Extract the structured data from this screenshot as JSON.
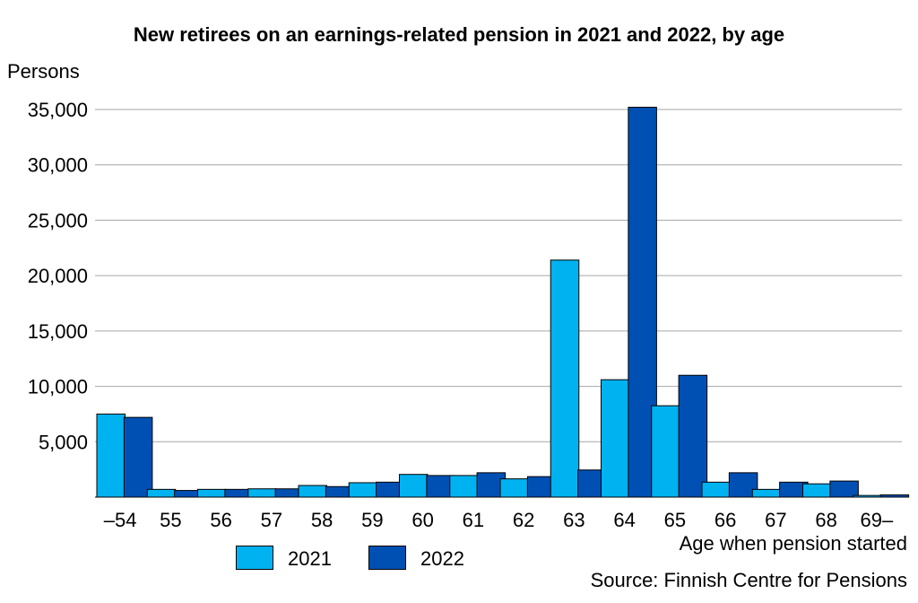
{
  "chart_data": {
    "type": "bar",
    "title": "New retirees on an earnings-related pension in 2021 and 2022, by age",
    "ylabel": "Persons",
    "xlabel": "Age when pension started",
    "source": "Source: Finnish Centre for Pensions",
    "categories": [
      "–54",
      "55",
      "56",
      "57",
      "58",
      "59",
      "60",
      "61",
      "62",
      "63",
      "64",
      "65",
      "66",
      "67",
      "68",
      "69–"
    ],
    "series": [
      {
        "name": "2021",
        "color": "#00b2f0",
        "values": [
          7500,
          700,
          700,
          750,
          1050,
          1300,
          2050,
          1950,
          1650,
          21400,
          10600,
          8250,
          1350,
          700,
          1200,
          150
        ]
      },
      {
        "name": "2022",
        "color": "#0050b4",
        "values": [
          7200,
          600,
          700,
          750,
          950,
          1350,
          1950,
          2200,
          1850,
          2450,
          35200,
          11000,
          2200,
          1350,
          1450,
          200
        ]
      }
    ],
    "ylim": [
      0,
      35000
    ],
    "yticks": [
      "5,000",
      "10,000",
      "15,000",
      "20,000",
      "25,000",
      "30,000",
      "35,000"
    ],
    "ytick_values": [
      5000,
      10000,
      15000,
      20000,
      25000,
      30000,
      35000
    ],
    "grid": true,
    "legend_position": "bottom-left"
  }
}
